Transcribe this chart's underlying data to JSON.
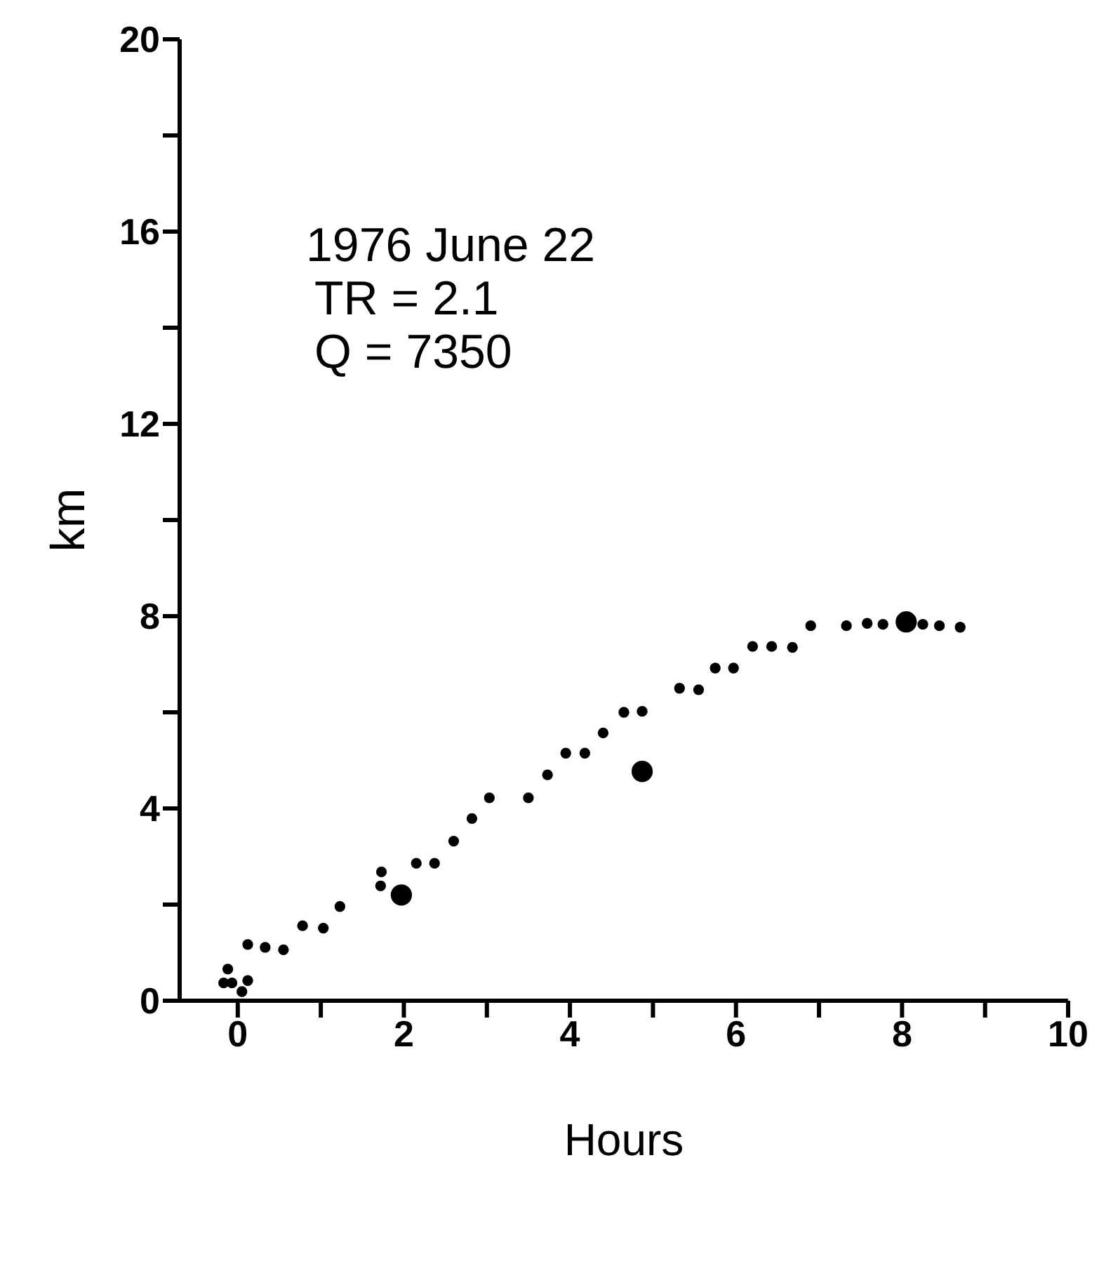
{
  "chart_data": {
    "type": "scatter",
    "xlabel": "Hours",
    "ylabel": "km",
    "annotations": [
      "1976 June 22",
      "TR = 2.1",
      "Q = 7350"
    ],
    "xlim": [
      -0.7,
      10
    ],
    "xticks": [
      0,
      {
        "value": 1,
        "label": null
      },
      2,
      {
        "value": 3,
        "label": null
      },
      4,
      {
        "value": 5,
        "label": null
      },
      6,
      {
        "value": 7,
        "label": null
      },
      8,
      {
        "value": 9,
        "label": null
      },
      10
    ],
    "ylim": [
      0,
      20
    ],
    "yticks": [
      0,
      {
        "value": 2,
        "label": null
      },
      4,
      {
        "value": 6,
        "label": null
      },
      8,
      {
        "value": 10,
        "label": null
      },
      12,
      {
        "value": 14,
        "label": null
      },
      16,
      {
        "value": 18,
        "label": null
      },
      20
    ],
    "grid": false,
    "legend": false,
    "marker": "circle",
    "series": [
      {
        "color": "#000000",
        "x": [
          -0.12,
          -0.17,
          -0.07,
          0.05,
          0.12,
          0.12,
          0.33,
          0.55,
          0.78,
          1.03,
          1.23,
          1.72,
          1.73,
          2.15,
          2.37,
          2.6,
          2.82,
          3.03,
          3.5,
          3.73,
          3.95,
          4.18,
          4.4,
          4.65,
          4.87,
          5.32,
          5.55,
          5.75,
          5.97,
          6.2,
          6.43,
          6.68,
          6.9,
          7.33,
          7.58,
          7.77,
          8.25,
          8.45,
          8.7
        ],
        "values": [
          0.66,
          0.37,
          0.37,
          0.19,
          0.42,
          1.17,
          1.11,
          1.06,
          1.56,
          1.51,
          1.96,
          2.39,
          2.68,
          2.86,
          2.86,
          3.32,
          3.79,
          4.22,
          4.22,
          4.7,
          5.15,
          5.15,
          5.57,
          6.0,
          6.02,
          6.5,
          6.47,
          6.92,
          6.92,
          7.37,
          7.37,
          7.35,
          7.8,
          7.8,
          7.85,
          7.83,
          7.83,
          7.8,
          7.77
        ]
      },
      {
        "color": "#000000",
        "x": [
          1.97,
          4.87,
          8.05
        ],
        "values": [
          2.2,
          4.77,
          7.88
        ]
      }
    ]
  }
}
